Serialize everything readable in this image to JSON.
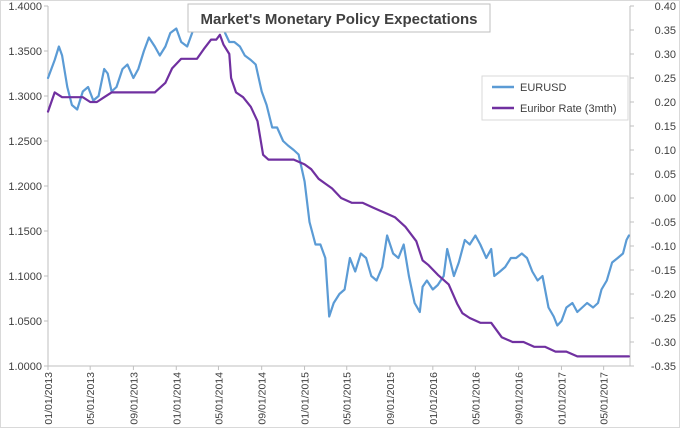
{
  "chart_data": {
    "type": "line",
    "title": "Market's Monetary Policy Expectations",
    "x_tick_labels": [
      "01/01/2013",
      "05/01/2013",
      "09/01/2013",
      "01/01/2014",
      "05/01/2014",
      "09/01/2014",
      "01/01/2015",
      "05/01/2015",
      "09/01/2015",
      "01/01/2016",
      "05/01/2016",
      "09/01/2016",
      "01/01/2017",
      "05/01/2017"
    ],
    "x_range": [
      "2013-01-01",
      "2017-07-15"
    ],
    "y_left": {
      "ticks": [
        "1.0000",
        "1.0500",
        "1.1000",
        "1.1500",
        "1.2000",
        "1.2500",
        "1.3000",
        "1.3500",
        "1.4000"
      ],
      "ylim": [
        1.0,
        1.4
      ]
    },
    "y_right": {
      "ticks": [
        "0.40",
        "0.35",
        "0.30",
        "0.25",
        "0.20",
        "0.15",
        "0.10",
        "0.05",
        "0.00",
        "-0.05",
        "-0.10",
        "-0.15",
        "-0.20",
        "-0.25",
        "-0.30",
        "-0.35"
      ],
      "ylim": [
        -0.35,
        0.4
      ]
    },
    "grid": false,
    "legend": "upper-right",
    "colors": {
      "eurusd": "#5b9bd5",
      "euribor": "#7030a0",
      "axis": "#bfbfbf",
      "text": "#404040"
    },
    "series": [
      {
        "name": "EURUSD",
        "axis": "left",
        "x": [
          "2013-01-01",
          "2013-01-20",
          "2013-02-01",
          "2013-02-10",
          "2013-02-25",
          "2013-03-10",
          "2013-03-25",
          "2013-04-10",
          "2013-04-25",
          "2013-05-10",
          "2013-05-25",
          "2013-06-10",
          "2013-06-20",
          "2013-07-01",
          "2013-07-15",
          "2013-08-01",
          "2013-08-15",
          "2013-09-01",
          "2013-09-15",
          "2013-10-01",
          "2013-10-15",
          "2013-11-01",
          "2013-11-15",
          "2013-12-01",
          "2013-12-15",
          "2014-01-01",
          "2014-01-15",
          "2014-02-01",
          "2014-02-15",
          "2014-03-01",
          "2014-03-15",
          "2014-04-01",
          "2014-04-15",
          "2014-05-01",
          "2014-05-08",
          "2014-05-20",
          "2014-06-01",
          "2014-06-15",
          "2014-07-01",
          "2014-07-15",
          "2014-08-01",
          "2014-08-15",
          "2014-09-01",
          "2014-09-15",
          "2014-10-01",
          "2014-10-15",
          "2014-11-01",
          "2014-11-15",
          "2014-12-01",
          "2014-12-15",
          "2015-01-01",
          "2015-01-15",
          "2015-02-01",
          "2015-02-15",
          "2015-03-01",
          "2015-03-12",
          "2015-03-25",
          "2015-04-10",
          "2015-04-25",
          "2015-05-10",
          "2015-05-25",
          "2015-06-10",
          "2015-06-25",
          "2015-07-10",
          "2015-07-25",
          "2015-08-10",
          "2015-08-24",
          "2015-09-10",
          "2015-09-25",
          "2015-10-10",
          "2015-10-25",
          "2015-11-10",
          "2015-11-25",
          "2015-12-03",
          "2015-12-15",
          "2016-01-01",
          "2016-01-15",
          "2016-02-01",
          "2016-02-11",
          "2016-03-01",
          "2016-03-15",
          "2016-04-01",
          "2016-04-15",
          "2016-05-01",
          "2016-05-15",
          "2016-06-01",
          "2016-06-15",
          "2016-06-24",
          "2016-07-10",
          "2016-07-25",
          "2016-08-10",
          "2016-08-25",
          "2016-09-10",
          "2016-09-25",
          "2016-10-10",
          "2016-10-25",
          "2016-11-08",
          "2016-11-25",
          "2016-12-10",
          "2016-12-20",
          "2017-01-01",
          "2017-01-15",
          "2017-02-01",
          "2017-02-15",
          "2017-03-01",
          "2017-03-15",
          "2017-04-01",
          "2017-04-15",
          "2017-04-25",
          "2017-05-10",
          "2017-05-25",
          "2017-06-10",
          "2017-06-25",
          "2017-07-05",
          "2017-07-12"
        ],
        "values": [
          1.32,
          1.34,
          1.355,
          1.345,
          1.31,
          1.29,
          1.285,
          1.305,
          1.31,
          1.295,
          1.3,
          1.33,
          1.325,
          1.305,
          1.31,
          1.33,
          1.335,
          1.32,
          1.33,
          1.35,
          1.365,
          1.355,
          1.345,
          1.355,
          1.37,
          1.375,
          1.36,
          1.355,
          1.37,
          1.385,
          1.395,
          1.38,
          1.385,
          1.39,
          1.395,
          1.37,
          1.36,
          1.36,
          1.355,
          1.345,
          1.34,
          1.335,
          1.305,
          1.29,
          1.265,
          1.265,
          1.25,
          1.245,
          1.24,
          1.235,
          1.205,
          1.16,
          1.135,
          1.135,
          1.12,
          1.055,
          1.07,
          1.08,
          1.085,
          1.12,
          1.105,
          1.125,
          1.12,
          1.1,
          1.095,
          1.11,
          1.145,
          1.125,
          1.12,
          1.135,
          1.1,
          1.07,
          1.06,
          1.088,
          1.095,
          1.085,
          1.09,
          1.1,
          1.13,
          1.1,
          1.115,
          1.14,
          1.135,
          1.145,
          1.135,
          1.12,
          1.13,
          1.1,
          1.105,
          1.11,
          1.12,
          1.12,
          1.125,
          1.12,
          1.105,
          1.095,
          1.1,
          1.065,
          1.055,
          1.045,
          1.05,
          1.065,
          1.07,
          1.06,
          1.065,
          1.07,
          1.065,
          1.07,
          1.085,
          1.095,
          1.115,
          1.12,
          1.125,
          1.14,
          1.145
        ]
      },
      {
        "name": "Euribor Rate (3mth)",
        "axis": "right",
        "x": [
          "2013-01-01",
          "2013-01-20",
          "2013-02-10",
          "2013-03-01",
          "2013-03-20",
          "2013-04-10",
          "2013-05-01",
          "2013-05-20",
          "2013-06-10",
          "2013-07-01",
          "2013-08-01",
          "2013-09-01",
          "2013-10-01",
          "2013-11-01",
          "2013-12-01",
          "2013-12-20",
          "2014-01-15",
          "2014-02-10",
          "2014-03-01",
          "2014-03-20",
          "2014-04-10",
          "2014-04-25",
          "2014-05-05",
          "2014-05-15",
          "2014-06-01",
          "2014-06-06",
          "2014-06-20",
          "2014-07-10",
          "2014-08-01",
          "2014-08-20",
          "2014-09-05",
          "2014-09-20",
          "2014-10-10",
          "2014-11-01",
          "2014-12-01",
          "2015-01-01",
          "2015-01-20",
          "2015-02-10",
          "2015-03-01",
          "2015-03-20",
          "2015-04-15",
          "2015-05-15",
          "2015-06-15",
          "2015-07-15",
          "2015-08-15",
          "2015-09-15",
          "2015-10-15",
          "2015-11-15",
          "2015-12-03",
          "2015-12-20",
          "2016-01-15",
          "2016-02-15",
          "2016-03-10",
          "2016-03-25",
          "2016-04-15",
          "2016-05-15",
          "2016-06-15",
          "2016-07-15",
          "2016-08-15",
          "2016-09-15",
          "2016-10-15",
          "2016-11-15",
          "2016-12-15",
          "2017-01-15",
          "2017-02-15",
          "2017-03-15",
          "2017-04-15",
          "2017-05-15",
          "2017-06-15",
          "2017-07-12"
        ],
        "values": [
          0.18,
          0.22,
          0.21,
          0.21,
          0.21,
          0.21,
          0.2,
          0.2,
          0.21,
          0.22,
          0.22,
          0.22,
          0.22,
          0.22,
          0.24,
          0.27,
          0.29,
          0.29,
          0.29,
          0.31,
          0.33,
          0.33,
          0.34,
          0.32,
          0.3,
          0.25,
          0.22,
          0.21,
          0.19,
          0.16,
          0.09,
          0.08,
          0.08,
          0.08,
          0.08,
          0.07,
          0.06,
          0.04,
          0.03,
          0.02,
          0.0,
          -0.01,
          -0.01,
          -0.02,
          -0.03,
          -0.04,
          -0.06,
          -0.09,
          -0.13,
          -0.14,
          -0.16,
          -0.18,
          -0.22,
          -0.24,
          -0.25,
          -0.26,
          -0.26,
          -0.29,
          -0.3,
          -0.3,
          -0.31,
          -0.31,
          -0.32,
          -0.32,
          -0.33,
          -0.33,
          -0.33,
          -0.33,
          -0.33,
          -0.33
        ]
      }
    ]
  }
}
